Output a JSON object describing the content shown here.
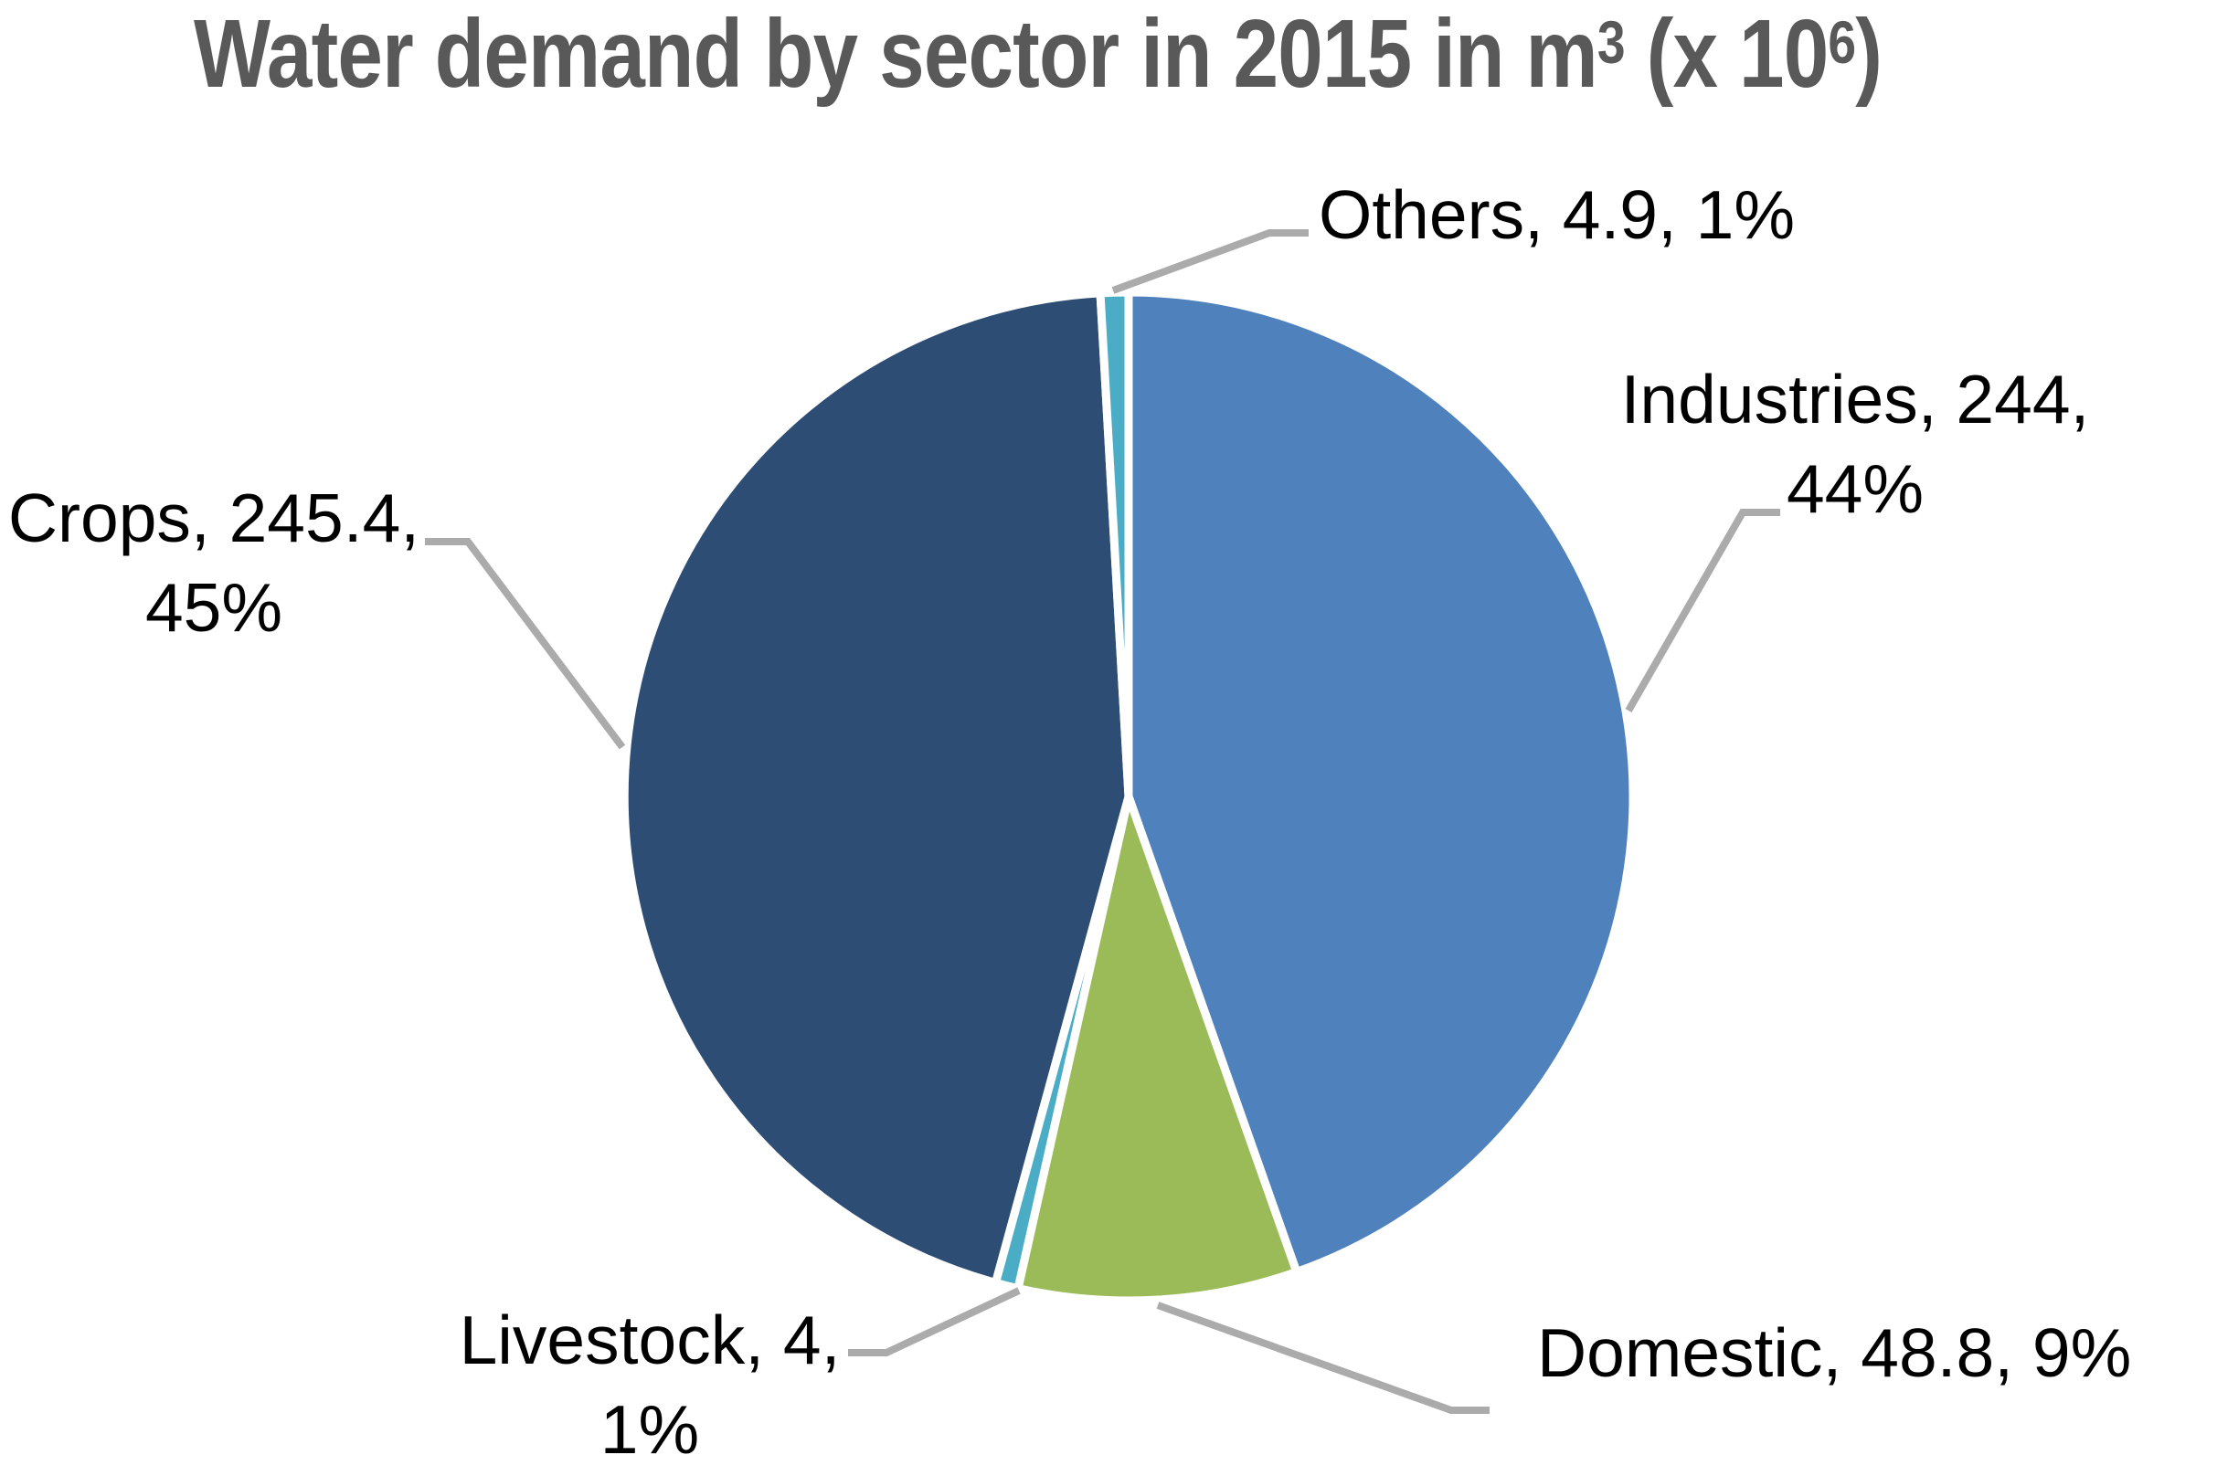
{
  "title": {
    "full": "Water demand by sector in 2015 in m³ (x 10⁶)",
    "base1": "Water demand by sector in 2015 in m",
    "sup1": "3",
    "base2": " (x 10",
    "sup2": "6",
    "base3": ")"
  },
  "colors": {
    "background": "#FFFFFF",
    "title_text": "#595959",
    "label_text": "#000000",
    "leader_line": "#ABABAB",
    "slice_border": "#FFFFFF"
  },
  "chart_data": {
    "type": "pie",
    "title": "Water demand by sector in 2015 in m³ (x 10⁶)",
    "categories": [
      "Industries",
      "Domestic",
      "Livestock",
      "Crops",
      "Others"
    ],
    "values": [
      244,
      48.8,
      4,
      245.4,
      4.9
    ],
    "percentages": [
      44,
      9,
      1,
      45,
      1
    ],
    "colors": [
      "#4F81BD",
      "#9BBB59",
      "#4BACC6",
      "#2D4D74",
      "#4BACC6"
    ],
    "start_angle_deg": 0,
    "direction": "clockwise",
    "legend": "none",
    "labels": [
      {
        "lines": [
          "Industries, 244,",
          "44%"
        ]
      },
      {
        "lines": [
          "Domestic, 48.8, 9%"
        ]
      },
      {
        "lines": [
          "Livestock, 4,",
          "1%"
        ]
      },
      {
        "lines": [
          "Crops, 245.4,",
          "45%"
        ]
      },
      {
        "lines": [
          "Others, 4.9, 1%"
        ]
      }
    ]
  }
}
